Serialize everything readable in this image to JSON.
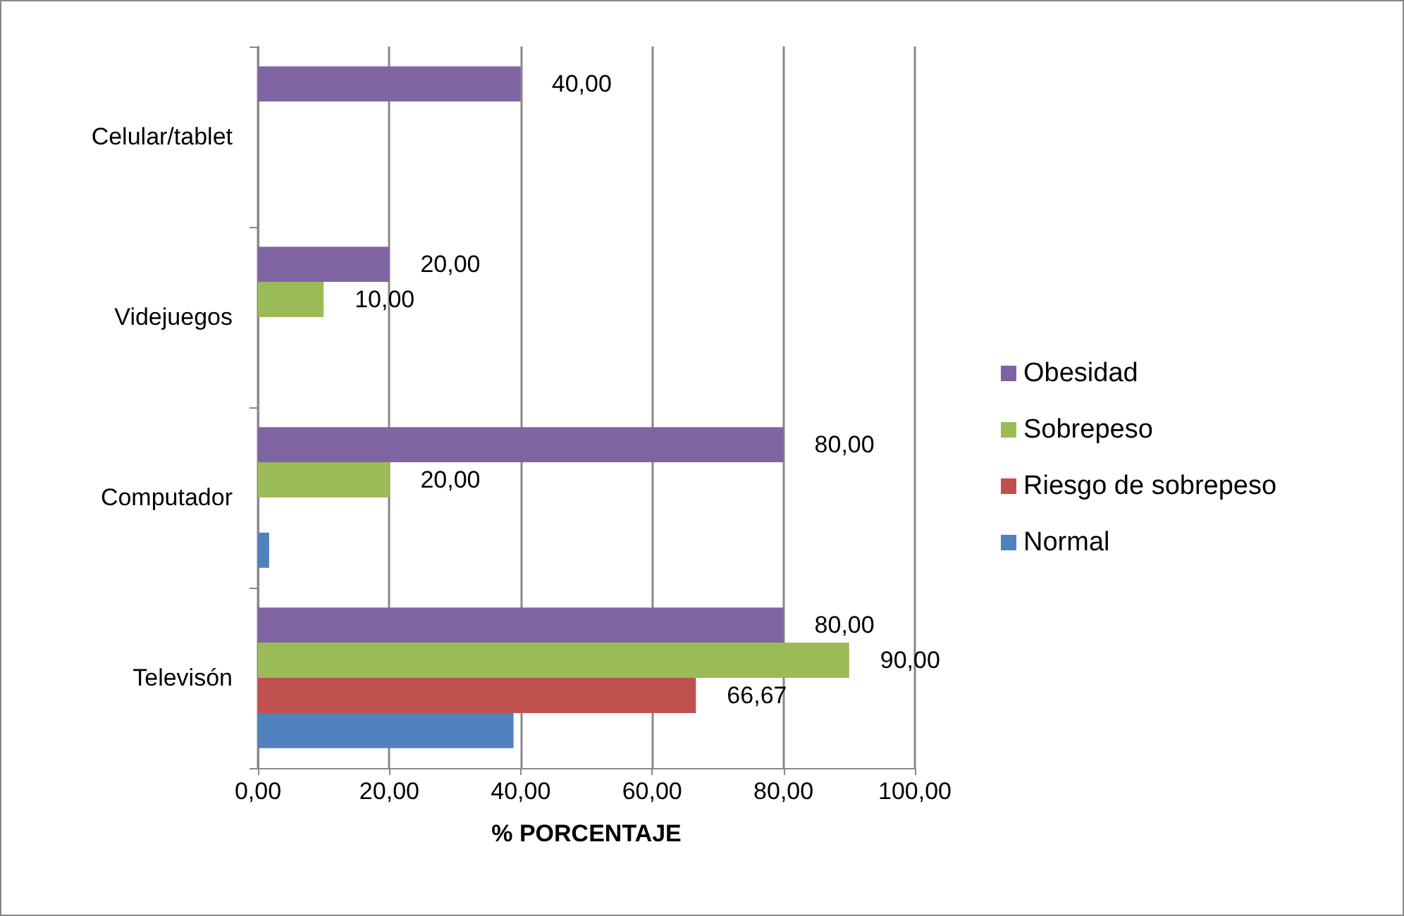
{
  "chart_data": {
    "type": "bar",
    "orientation": "horizontal",
    "xlabel": "% PORCENTAJE",
    "categories": [
      "Celular/tablet",
      "Videjuegos",
      "Computador",
      "Televisón"
    ],
    "series": [
      {
        "name": "Obesidad",
        "color": "#8064a2",
        "values": [
          40,
          20,
          80,
          80
        ],
        "value_labels": [
          "40,00",
          "20,00",
          "80,00",
          "80,00"
        ]
      },
      {
        "name": "Sobrepeso",
        "color": "#9bbb59",
        "values": [
          null,
          10,
          20,
          90
        ],
        "value_labels": [
          null,
          "10,00",
          "20,00",
          "90,00"
        ]
      },
      {
        "name": "Riesgo de sobrepeso",
        "color": "#c0504d",
        "values": [
          null,
          null,
          null,
          66.67
        ],
        "value_labels": [
          null,
          null,
          null,
          "66,67"
        ]
      },
      {
        "name": "Normal",
        "color": "#4f81bd",
        "values": [
          null,
          null,
          1.7,
          38.9
        ],
        "value_labels": [
          null,
          null,
          null,
          null
        ]
      }
    ],
    "xlim": [
      0,
      100
    ],
    "xticks": [
      {
        "value": 0,
        "label": "0,00"
      },
      {
        "value": 20,
        "label": "20,00"
      },
      {
        "value": 40,
        "label": "40,00"
      },
      {
        "value": 60,
        "label": "60,00"
      },
      {
        "value": 80,
        "label": "80,00"
      },
      {
        "value": 100,
        "label": "100,00"
      }
    ],
    "grid": "x",
    "legend": "right"
  }
}
